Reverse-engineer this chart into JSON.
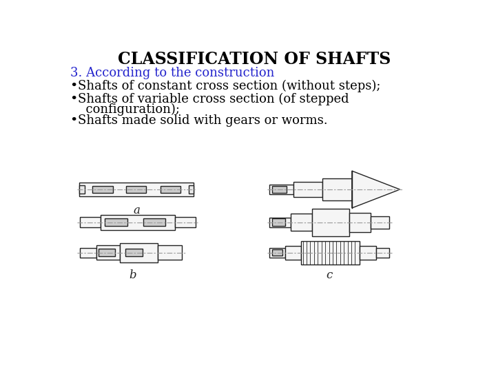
{
  "title": "CLASSIFICATION OF SHAFTS",
  "title_fontsize": 17,
  "title_color": "#000000",
  "subtitle": "3. According to the construction",
  "subtitle_color": "#2222cc",
  "subtitle_fontsize": 13,
  "bullet1": "Shafts of constant cross section (without steps);",
  "bullet2a": "Shafts of variable cross section (of stepped",
  "bullet2b": "  configuration);",
  "bullet3": "Shafts made solid with gears or worms.",
  "bullet_fontsize": 13,
  "bullet_color": "#000000",
  "background_color": "#ffffff",
  "label_a": "a",
  "label_b": "b",
  "label_c": "c",
  "shaft_color": "#222222",
  "shaft_linewidth": 1.0,
  "shaft_fc": "#f5f5f5",
  "keyway_fc": "#cccccc",
  "centerline_color": "#999999"
}
